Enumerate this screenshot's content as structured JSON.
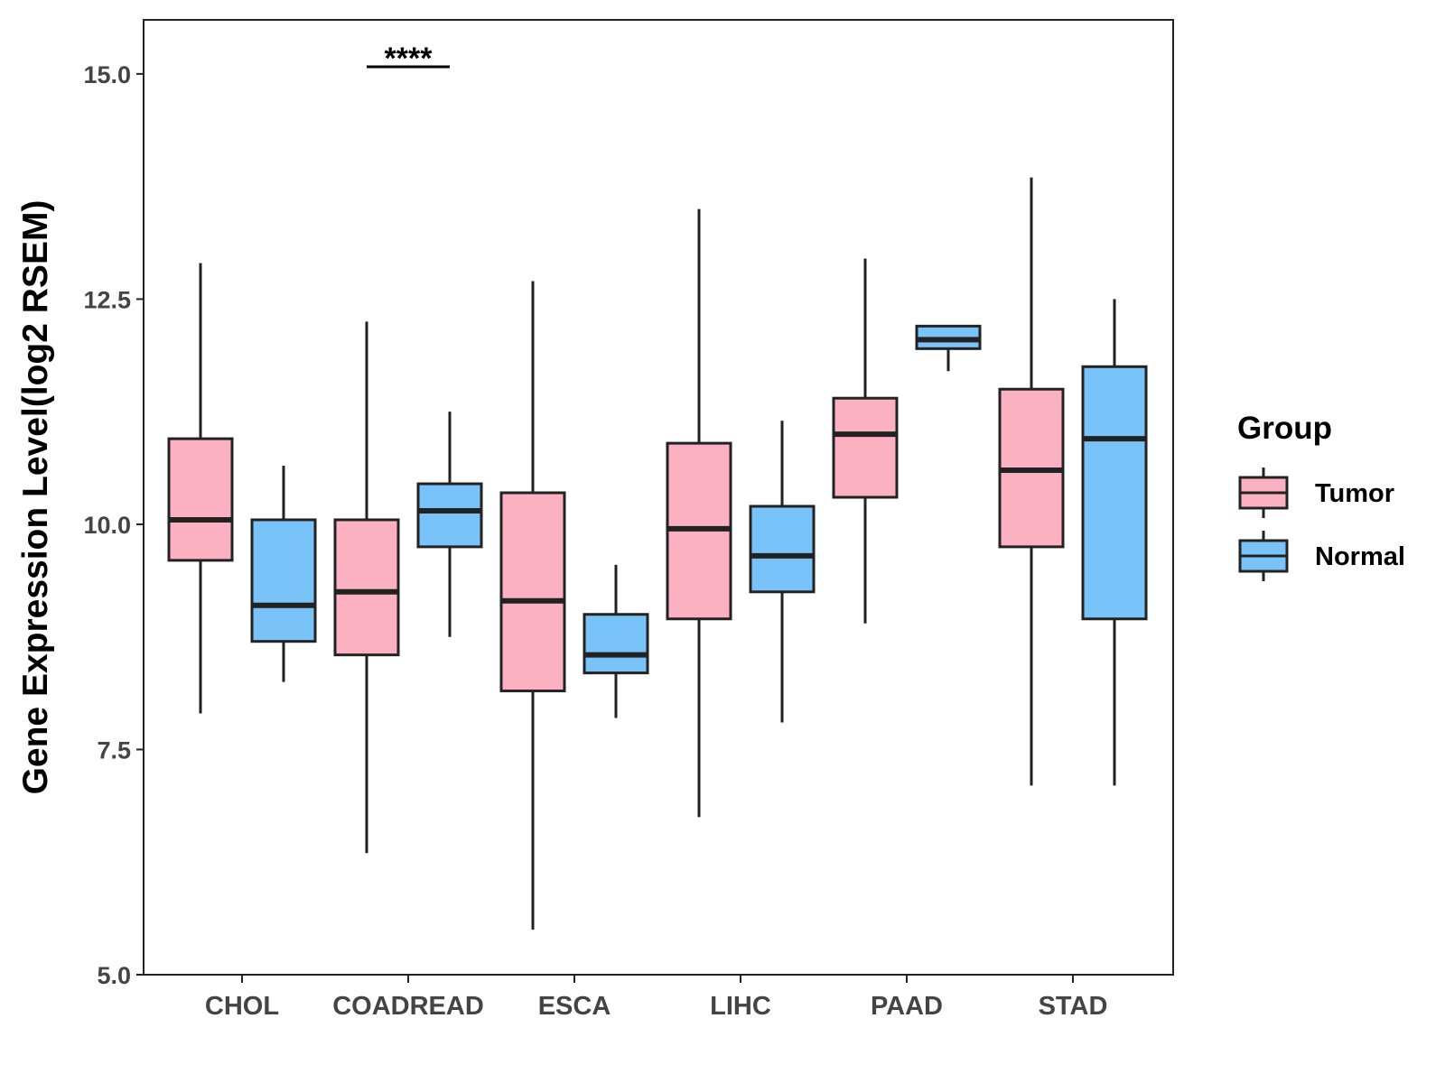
{
  "chart_data": {
    "type": "boxplot",
    "title": "",
    "xlabel": "",
    "ylabel": "Gene Expression Level(log2 RSEM)",
    "ylim": [
      5.0,
      15.6
    ],
    "yticks": [
      "5.0",
      "7.5",
      "10.0",
      "12.5",
      "15.0"
    ],
    "grid": false,
    "categories": [
      "CHOL",
      "COADREAD",
      "ESCA",
      "LIHC",
      "PAAD",
      "STAD"
    ],
    "legend": {
      "title": "Group",
      "position": "right",
      "entries": [
        "Tumor",
        "Normal"
      ]
    },
    "colors": {
      "Tumor": "#FBB1C2",
      "Normal": "#79C3F9",
      "outline": "#222222"
    },
    "series": [
      {
        "name": "Tumor",
        "boxes": [
          {
            "category": "CHOL",
            "whisker_low": 7.9,
            "q1": 9.6,
            "median": 10.05,
            "q3": 10.95,
            "whisker_high": 12.9
          },
          {
            "category": "COADREAD",
            "whisker_low": 6.35,
            "q1": 8.55,
            "median": 9.25,
            "q3": 10.05,
            "whisker_high": 12.25
          },
          {
            "category": "ESCA",
            "whisker_low": 5.5,
            "q1": 8.15,
            "median": 9.15,
            "q3": 10.35,
            "whisker_high": 12.7
          },
          {
            "category": "LIHC",
            "whisker_low": 6.75,
            "q1": 8.95,
            "median": 9.95,
            "q3": 10.9,
            "whisker_high": 13.5
          },
          {
            "category": "PAAD",
            "whisker_low": 8.9,
            "q1": 10.3,
            "median": 11.0,
            "q3": 11.4,
            "whisker_high": 12.95
          },
          {
            "category": "STAD",
            "whisker_low": 7.1,
            "q1": 9.75,
            "median": 10.6,
            "q3": 11.5,
            "whisker_high": 13.85
          }
        ]
      },
      {
        "name": "Normal",
        "boxes": [
          {
            "category": "CHOL",
            "whisker_low": 8.25,
            "q1": 8.7,
            "median": 9.1,
            "q3": 10.05,
            "whisker_high": 10.65
          },
          {
            "category": "COADREAD",
            "whisker_low": 8.75,
            "q1": 9.75,
            "median": 10.15,
            "q3": 10.45,
            "whisker_high": 11.25
          },
          {
            "category": "ESCA",
            "whisker_low": 7.85,
            "q1": 8.35,
            "median": 8.55,
            "q3": 9.0,
            "whisker_high": 9.55
          },
          {
            "category": "LIHC",
            "whisker_low": 7.8,
            "q1": 9.25,
            "median": 9.65,
            "q3": 10.2,
            "whisker_high": 11.15
          },
          {
            "category": "PAAD",
            "whisker_low": 11.7,
            "q1": 11.95,
            "median": 12.05,
            "q3": 12.2,
            "whisker_high": 12.2
          },
          {
            "category": "STAD",
            "whisker_low": 7.1,
            "q1": 8.95,
            "median": 10.95,
            "q3": 11.75,
            "whisker_high": 12.5
          }
        ]
      }
    ],
    "annotations": [
      {
        "category": "COADREAD",
        "text": "****"
      }
    ]
  }
}
